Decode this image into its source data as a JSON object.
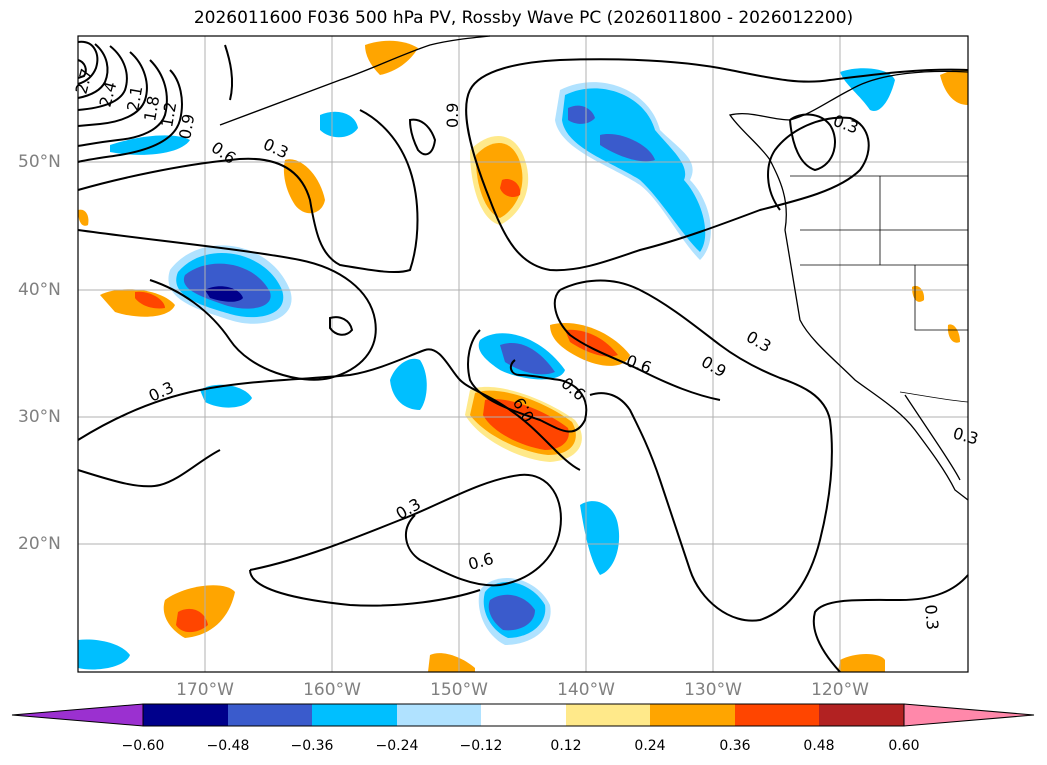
{
  "title": "2026011600 F036 500 hPa PV, Rossby Wave PC (2026011800 - 2026012200)",
  "map": {
    "lat_labels": [
      "50°N",
      "40°N",
      "30°N",
      "20°N"
    ],
    "lon_labels": [
      "170°W",
      "160°W",
      "150°W",
      "140°W",
      "130°W",
      "120°W"
    ],
    "contour_labels": [
      "2.7",
      "2.4",
      "2.1",
      "1.8",
      "1.2",
      "0.9",
      "0.6",
      "0.3",
      "0.9",
      "0.3",
      "0.3",
      "0.6",
      "0.6",
      "0.9",
      "0.3",
      "0.9",
      "0.3",
      "0.6",
      "0.3",
      "0.3"
    ]
  },
  "colorbar": {
    "ticks": [
      "−0.60",
      "−0.48",
      "−0.36",
      "−0.24",
      "−0.12",
      "0.12",
      "0.24",
      "0.36",
      "0.48",
      "0.60"
    ],
    "colors": [
      "#9b30d0",
      "#00008b",
      "#3a5bcc",
      "#00bfff",
      "#b0e2ff",
      "#ffffff",
      "#ffe98a",
      "#ffa500",
      "#ff4500",
      "#b22222",
      "#ff88aa"
    ]
  }
}
